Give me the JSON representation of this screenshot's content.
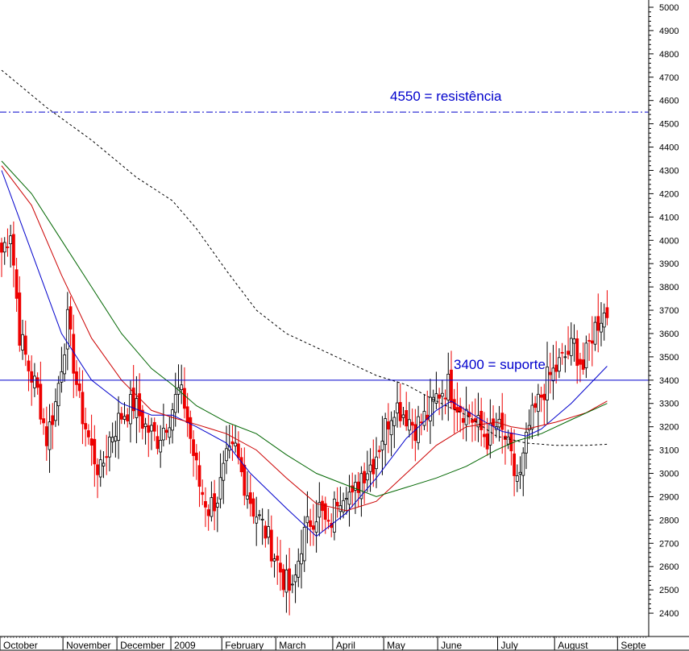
{
  "chart_data": {
    "type": "candlestick",
    "title": "",
    "xlabel": "",
    "ylabel": "",
    "ylim": [
      2300,
      5000
    ],
    "yticks": [
      2400,
      2500,
      2600,
      2700,
      2800,
      2900,
      3000,
      3100,
      3200,
      3300,
      3400,
      3500,
      3600,
      3700,
      3800,
      3900,
      4000,
      4100,
      4200,
      4300,
      4400,
      4500,
      4600,
      4700,
      4800,
      4900,
      5000
    ],
    "months": [
      {
        "label": "October",
        "start": 0
      },
      {
        "label": "November",
        "start": 21
      },
      {
        "label": "December",
        "start": 39
      },
      {
        "label": "2009",
        "start": 57
      },
      {
        "label": "February",
        "start": 74
      },
      {
        "label": "March",
        "start": 92
      },
      {
        "label": "April",
        "start": 111
      },
      {
        "label": "May",
        "start": 128
      },
      {
        "label": "June",
        "start": 146
      },
      {
        "label": "July",
        "start": 166
      },
      {
        "label": "August",
        "start": 185
      },
      {
        "label": "Septe",
        "start": 206
      }
    ],
    "x_days": 215,
    "grid": false,
    "hlines": [
      {
        "value": 4550,
        "style": "dashdot",
        "color": "#0000cc",
        "label": "4550 = resistência"
      },
      {
        "value": 3400,
        "style": "solid",
        "color": "#0000cc",
        "label": "3400 = suporte"
      }
    ],
    "keypoints": [
      {
        "d": 0,
        "c": 3950
      },
      {
        "d": 3,
        "c": 4050
      },
      {
        "d": 6,
        "c": 3600
      },
      {
        "d": 9,
        "c": 3450
      },
      {
        "d": 12,
        "c": 3350
      },
      {
        "d": 15,
        "c": 3150
      },
      {
        "d": 18,
        "c": 3300
      },
      {
        "d": 22,
        "c": 3650
      },
      {
        "d": 26,
        "c": 3300
      },
      {
        "d": 30,
        "c": 3100
      },
      {
        "d": 33,
        "c": 3000
      },
      {
        "d": 36,
        "c": 3150
      },
      {
        "d": 40,
        "c": 3250
      },
      {
        "d": 44,
        "c": 3300
      },
      {
        "d": 48,
        "c": 3200
      },
      {
        "d": 52,
        "c": 3150
      },
      {
        "d": 56,
        "c": 3250
      },
      {
        "d": 59,
        "c": 3350
      },
      {
        "d": 61,
        "c": 3300
      },
      {
        "d": 63,
        "c": 3150
      },
      {
        "d": 66,
        "c": 2950
      },
      {
        "d": 69,
        "c": 2850
      },
      {
        "d": 72,
        "c": 2900
      },
      {
        "d": 75,
        "c": 3050
      },
      {
        "d": 78,
        "c": 3100
      },
      {
        "d": 80,
        "c": 3000
      },
      {
        "d": 84,
        "c": 2850
      },
      {
        "d": 88,
        "c": 2750
      },
      {
        "d": 91,
        "c": 2650
      },
      {
        "d": 94,
        "c": 2550
      },
      {
        "d": 97,
        "c": 2480
      },
      {
        "d": 100,
        "c": 2700
      },
      {
        "d": 103,
        "c": 2800
      },
      {
        "d": 106,
        "c": 2850
      },
      {
        "d": 109,
        "c": 2750
      },
      {
        "d": 112,
        "c": 2900
      },
      {
        "d": 115,
        "c": 2950
      },
      {
        "d": 117,
        "c": 2880
      },
      {
        "d": 120,
        "c": 3000
      },
      {
        "d": 124,
        "c": 3050
      },
      {
        "d": 128,
        "c": 3200
      },
      {
        "d": 131,
        "c": 3300
      },
      {
        "d": 135,
        "c": 3250
      },
      {
        "d": 138,
        "c": 3200
      },
      {
        "d": 142,
        "c": 3250
      },
      {
        "d": 146,
        "c": 3350
      },
      {
        "d": 149,
        "c": 3380
      },
      {
        "d": 152,
        "c": 3300
      },
      {
        "d": 156,
        "c": 3250
      },
      {
        "d": 159,
        "c": 3200
      },
      {
        "d": 162,
        "c": 3150
      },
      {
        "d": 165,
        "c": 3200
      },
      {
        "d": 168,
        "c": 3150
      },
      {
        "d": 171,
        "c": 3000
      },
      {
        "d": 173,
        "c": 2980
      },
      {
        "d": 176,
        "c": 3200
      },
      {
        "d": 179,
        "c": 3300
      },
      {
        "d": 182,
        "c": 3400
      },
      {
        "d": 185,
        "c": 3450
      },
      {
        "d": 188,
        "c": 3500
      },
      {
        "d": 191,
        "c": 3550
      },
      {
        "d": 194,
        "c": 3450
      },
      {
        "d": 197,
        "c": 3600
      },
      {
        "d": 200,
        "c": 3680
      },
      {
        "d": 202,
        "c": 3690
      }
    ],
    "series": [
      {
        "color": "#0000cc",
        "style": "solid",
        "points": [
          [
            0,
            4300
          ],
          [
            10,
            3950
          ],
          [
            20,
            3600
          ],
          [
            30,
            3400
          ],
          [
            40,
            3300
          ],
          [
            50,
            3250
          ],
          [
            57,
            3250
          ],
          [
            65,
            3200
          ],
          [
            75,
            3130
          ],
          [
            83,
            3000
          ],
          [
            95,
            2850
          ],
          [
            105,
            2730
          ],
          [
            115,
            2830
          ],
          [
            125,
            2980
          ],
          [
            135,
            3150
          ],
          [
            145,
            3270
          ],
          [
            150,
            3310
          ],
          [
            160,
            3230
          ],
          [
            167,
            3180
          ],
          [
            175,
            3160
          ],
          [
            180,
            3190
          ],
          [
            190,
            3300
          ],
          [
            196,
            3380
          ],
          [
            202,
            3460
          ]
        ]
      },
      {
        "color": "#cc0000",
        "style": "solid",
        "points": [
          [
            0,
            4320
          ],
          [
            10,
            4150
          ],
          [
            20,
            3850
          ],
          [
            30,
            3580
          ],
          [
            40,
            3400
          ],
          [
            50,
            3270
          ],
          [
            57,
            3240
          ],
          [
            65,
            3210
          ],
          [
            75,
            3170
          ],
          [
            85,
            3100
          ],
          [
            95,
            2980
          ],
          [
            105,
            2870
          ],
          [
            115,
            2840
          ],
          [
            125,
            2880
          ],
          [
            135,
            3000
          ],
          [
            145,
            3120
          ],
          [
            155,
            3200
          ],
          [
            165,
            3220
          ],
          [
            170,
            3200
          ],
          [
            175,
            3190
          ],
          [
            185,
            3220
          ],
          [
            195,
            3260
          ],
          [
            202,
            3310
          ]
        ]
      },
      {
        "color": "#006600",
        "style": "solid",
        "points": [
          [
            0,
            4340
          ],
          [
            10,
            4200
          ],
          [
            20,
            4000
          ],
          [
            30,
            3800
          ],
          [
            40,
            3600
          ],
          [
            50,
            3450
          ],
          [
            57,
            3380
          ],
          [
            65,
            3290
          ],
          [
            75,
            3220
          ],
          [
            85,
            3170
          ],
          [
            95,
            3080
          ],
          [
            105,
            3000
          ],
          [
            115,
            2950
          ],
          [
            125,
            2900
          ],
          [
            135,
            2940
          ],
          [
            145,
            2980
          ],
          [
            155,
            3030
          ],
          [
            165,
            3100
          ],
          [
            172,
            3140
          ],
          [
            180,
            3170
          ],
          [
            190,
            3230
          ],
          [
            202,
            3300
          ]
        ]
      },
      {
        "color": "#000000",
        "style": "dashed",
        "points": [
          [
            0,
            4730
          ],
          [
            15,
            4570
          ],
          [
            30,
            4430
          ],
          [
            45,
            4270
          ],
          [
            57,
            4170
          ],
          [
            65,
            4050
          ],
          [
            75,
            3870
          ],
          [
            85,
            3700
          ],
          [
            95,
            3600
          ],
          [
            105,
            3540
          ],
          [
            115,
            3480
          ],
          [
            125,
            3420
          ],
          [
            135,
            3380
          ],
          [
            145,
            3310
          ],
          [
            155,
            3250
          ],
          [
            165,
            3160
          ],
          [
            175,
            3130
          ],
          [
            185,
            3120
          ],
          [
            195,
            3120
          ],
          [
            202,
            3125
          ]
        ]
      }
    ]
  }
}
